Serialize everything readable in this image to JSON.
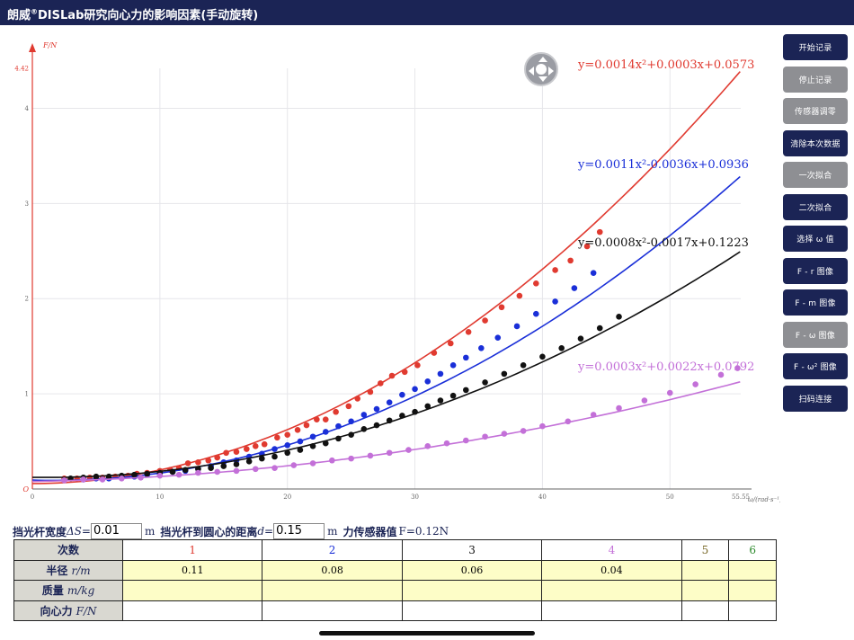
{
  "app": {
    "title_prefix": "朗威",
    "title_reg": "®",
    "title_rest": "DISLab研究向心力的影响因素(手动旋转)"
  },
  "sidebar": {
    "buttons": [
      {
        "label": "开始记录",
        "state": "on"
      },
      {
        "label": "停止记录",
        "state": "off"
      },
      {
        "label": "传感器调零",
        "state": "off"
      },
      {
        "label": "清除本次数据",
        "state": "on"
      },
      {
        "label": "一次拟合",
        "state": "off"
      },
      {
        "label": "二次拟合",
        "state": "on"
      },
      {
        "label": "选择 ω 值",
        "state": "on"
      },
      {
        "label": "F - r 图像",
        "state": "on"
      },
      {
        "label": "F - m 图像",
        "state": "on"
      },
      {
        "label": "F - ω 图像",
        "state": "off"
      },
      {
        "label": "F - ω² 图像",
        "state": "on"
      },
      {
        "label": "扫码连接",
        "state": "on"
      }
    ]
  },
  "params": {
    "width_label": "挡光杆宽度",
    "width_var": "ΔS=",
    "width_value": "0.01",
    "width_unit": "m",
    "dist_label": "挡光杆到圆心的距离",
    "dist_var": "d=",
    "dist_value": "0.15",
    "dist_unit": "m",
    "force_label": "力传感器值",
    "force_reading": "F=0.12N"
  },
  "table": {
    "row_labels": [
      "次数",
      "半径",
      "质量",
      "向心力"
    ],
    "row_vars": [
      "",
      "r/m",
      "m/kg",
      "F/N"
    ],
    "trial_numbers": [
      "1",
      "2",
      "3",
      "4",
      "5",
      "6"
    ],
    "trial_colors": [
      "#e03a30",
      "#1a2fd8",
      "#111111",
      "#c370d8",
      "#7a6a2a",
      "#2e8b2e"
    ],
    "radius_values": [
      "0.11",
      "0.08",
      "0.06",
      "0.04",
      "",
      ""
    ],
    "mass_values": [
      "",
      "",
      "",
      "",
      "",
      ""
    ],
    "force_values": [
      "",
      "",
      "",
      "",
      "",
      ""
    ]
  },
  "chart_data": {
    "type": "scatter",
    "ylabel": "F/N",
    "xlabel": "ω/(rad·s⁻¹)",
    "xlim": [
      0,
      55.55
    ],
    "ylim": [
      0,
      4.42
    ],
    "x_ticks": [
      "0",
      "10",
      "20",
      "30",
      "40",
      "50",
      "55.55"
    ],
    "y_ticks": [
      "1",
      "2",
      "3",
      "4",
      "4.42"
    ],
    "origin_label": "O",
    "grid": true,
    "series": [
      {
        "color": "#e03a30",
        "fit_label": "y=0.0014x²+0.0003x+0.0573",
        "fit": [
          0.0014,
          0.0003,
          0.0573
        ],
        "points": [
          [
            2.5,
            0.11
          ],
          [
            3.5,
            0.11
          ],
          [
            4.5,
            0.12
          ],
          [
            5.5,
            0.12
          ],
          [
            6.5,
            0.13
          ],
          [
            7.5,
            0.14
          ],
          [
            8.2,
            0.16
          ],
          [
            9,
            0.17
          ],
          [
            10,
            0.19
          ],
          [
            10.8,
            0.2
          ],
          [
            11.5,
            0.22
          ],
          [
            12.2,
            0.27
          ],
          [
            13,
            0.28
          ],
          [
            13.8,
            0.3
          ],
          [
            14.5,
            0.33
          ],
          [
            15.2,
            0.38
          ],
          [
            16,
            0.39
          ],
          [
            16.8,
            0.42
          ],
          [
            17.5,
            0.45
          ],
          [
            18.2,
            0.47
          ],
          [
            19.2,
            0.54
          ],
          [
            20,
            0.57
          ],
          [
            20.8,
            0.62
          ],
          [
            21.5,
            0.67
          ],
          [
            22.3,
            0.73
          ],
          [
            23,
            0.73
          ],
          [
            23.8,
            0.81
          ],
          [
            24.8,
            0.87
          ],
          [
            25.5,
            0.95
          ],
          [
            26.5,
            1.02
          ],
          [
            27.3,
            1.11
          ],
          [
            28.2,
            1.19
          ],
          [
            29.2,
            1.23
          ],
          [
            30.2,
            1.3
          ],
          [
            31.5,
            1.43
          ],
          [
            32.8,
            1.53
          ],
          [
            34.2,
            1.65
          ],
          [
            35.5,
            1.77
          ],
          [
            36.8,
            1.91
          ],
          [
            38.2,
            2.03
          ],
          [
            39.5,
            2.16
          ],
          [
            41,
            2.3
          ],
          [
            42.2,
            2.4
          ],
          [
            43.5,
            2.55
          ],
          [
            44.5,
            2.7
          ]
        ]
      },
      {
        "color": "#1a2fd8",
        "fit_label": "y=0.0011x²-0.0036x+0.0936",
        "fit": [
          0.0011,
          -0.0036,
          0.0936
        ],
        "points": [
          [
            4,
            0.1
          ],
          [
            5,
            0.11
          ],
          [
            6,
            0.11
          ],
          [
            7,
            0.12
          ],
          [
            8,
            0.13
          ],
          [
            9,
            0.15
          ],
          [
            10,
            0.16
          ],
          [
            11,
            0.18
          ],
          [
            12,
            0.19
          ],
          [
            13,
            0.21
          ],
          [
            14,
            0.24
          ],
          [
            15,
            0.28
          ],
          [
            16,
            0.3
          ],
          [
            17,
            0.34
          ],
          [
            18,
            0.37
          ],
          [
            19,
            0.42
          ],
          [
            20,
            0.46
          ],
          [
            21,
            0.5
          ],
          [
            22,
            0.55
          ],
          [
            23,
            0.6
          ],
          [
            24,
            0.66
          ],
          [
            25,
            0.71
          ],
          [
            26,
            0.78
          ],
          [
            27,
            0.84
          ],
          [
            28,
            0.91
          ],
          [
            29,
            0.99
          ],
          [
            30,
            1.05
          ],
          [
            31,
            1.13
          ],
          [
            32,
            1.21
          ],
          [
            33,
            1.3
          ],
          [
            34,
            1.38
          ],
          [
            35.2,
            1.48
          ],
          [
            36.5,
            1.59
          ],
          [
            38,
            1.71
          ],
          [
            39.5,
            1.84
          ],
          [
            41,
            1.97
          ],
          [
            42.5,
            2.11
          ],
          [
            44,
            2.27
          ]
        ]
      },
      {
        "color": "#111111",
        "fit_label": "y=0.0008x²-0.0017x+0.1223",
        "fit": [
          0.0008,
          -0.0017,
          0.1223
        ],
        "points": [
          [
            3,
            0.11
          ],
          [
            4,
            0.12
          ],
          [
            5,
            0.13
          ],
          [
            6,
            0.13
          ],
          [
            7,
            0.14
          ],
          [
            8,
            0.15
          ],
          [
            9,
            0.16
          ],
          [
            10,
            0.17
          ],
          [
            11,
            0.18
          ],
          [
            12,
            0.2
          ],
          [
            13,
            0.21
          ],
          [
            14,
            0.22
          ],
          [
            15,
            0.24
          ],
          [
            16,
            0.26
          ],
          [
            17,
            0.29
          ],
          [
            18,
            0.32
          ],
          [
            19,
            0.34
          ],
          [
            20,
            0.38
          ],
          [
            21,
            0.41
          ],
          [
            22,
            0.45
          ],
          [
            23,
            0.48
          ],
          [
            24,
            0.53
          ],
          [
            25,
            0.57
          ],
          [
            26,
            0.63
          ],
          [
            27,
            0.67
          ],
          [
            28,
            0.72
          ],
          [
            29,
            0.77
          ],
          [
            30,
            0.81
          ],
          [
            31,
            0.87
          ],
          [
            32,
            0.93
          ],
          [
            33,
            0.98
          ],
          [
            34,
            1.04
          ],
          [
            35.5,
            1.12
          ],
          [
            37,
            1.21
          ],
          [
            38.5,
            1.3
          ],
          [
            40,
            1.39
          ],
          [
            41.5,
            1.48
          ],
          [
            43,
            1.58
          ],
          [
            44.5,
            1.69
          ],
          [
            46,
            1.81
          ]
        ]
      },
      {
        "color": "#c370d8",
        "fit_label": "y=0.0003x²+0.0022x+0.0792",
        "fit": [
          0.0003,
          0.0022,
          0.0792
        ],
        "points": [
          [
            2.5,
            0.09
          ],
          [
            4,
            0.1
          ],
          [
            5.5,
            0.1
          ],
          [
            7,
            0.11
          ],
          [
            8.5,
            0.12
          ],
          [
            10,
            0.14
          ],
          [
            11.5,
            0.15
          ],
          [
            13,
            0.17
          ],
          [
            14.5,
            0.18
          ],
          [
            16,
            0.19
          ],
          [
            17.5,
            0.21
          ],
          [
            19,
            0.22
          ],
          [
            20.5,
            0.25
          ],
          [
            22,
            0.27
          ],
          [
            23.5,
            0.3
          ],
          [
            25,
            0.32
          ],
          [
            26.5,
            0.35
          ],
          [
            28,
            0.38
          ],
          [
            29.5,
            0.41
          ],
          [
            31,
            0.45
          ],
          [
            32.5,
            0.48
          ],
          [
            34,
            0.51
          ],
          [
            35.5,
            0.55
          ],
          [
            37,
            0.58
          ],
          [
            38.5,
            0.61
          ],
          [
            40,
            0.66
          ],
          [
            42,
            0.71
          ],
          [
            44,
            0.78
          ],
          [
            46,
            0.85
          ],
          [
            48,
            0.93
          ],
          [
            50,
            1.01
          ],
          [
            52,
            1.1
          ],
          [
            54,
            1.2
          ],
          [
            55.3,
            1.27
          ]
        ]
      }
    ]
  }
}
